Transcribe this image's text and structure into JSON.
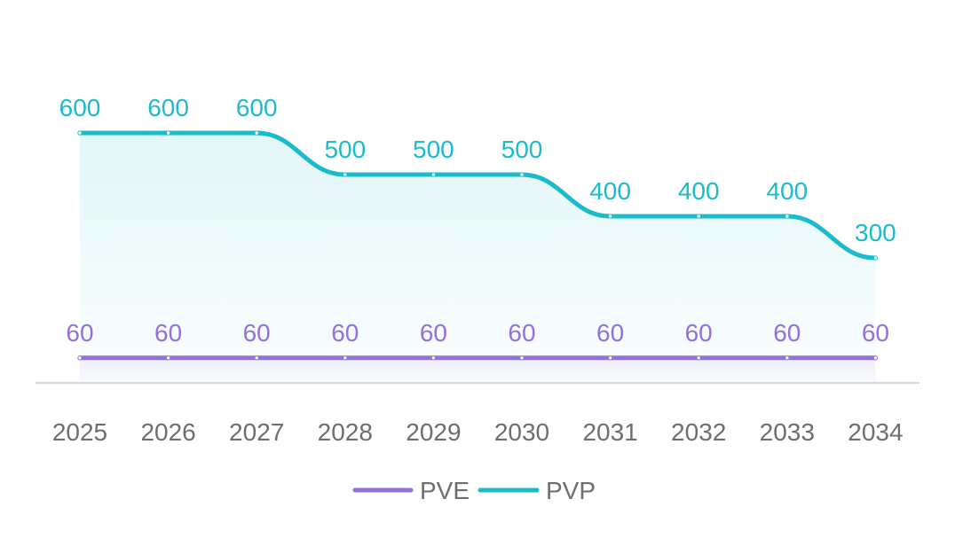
{
  "chart_data": {
    "type": "line",
    "categories": [
      "2025",
      "2026",
      "2027",
      "2028",
      "2029",
      "2030",
      "2031",
      "2032",
      "2033",
      "2034"
    ],
    "series": [
      {
        "name": "PVE",
        "values": [
          60,
          60,
          60,
          60,
          60,
          60,
          60,
          60,
          60,
          60
        ],
        "color": "#9370DB"
      },
      {
        "name": "PVP",
        "values": [
          600,
          600,
          600,
          500,
          500,
          500,
          400,
          400,
          400,
          300
        ],
        "color": "#1ABCCB"
      }
    ],
    "title": "",
    "xlabel": "",
    "ylabel": "",
    "ylim": [
      0,
      700
    ],
    "grid": false,
    "smooth": true,
    "area_fill": true,
    "data_labels": true,
    "legend_position": "bottom-center",
    "axis_color": "#cccccc"
  }
}
